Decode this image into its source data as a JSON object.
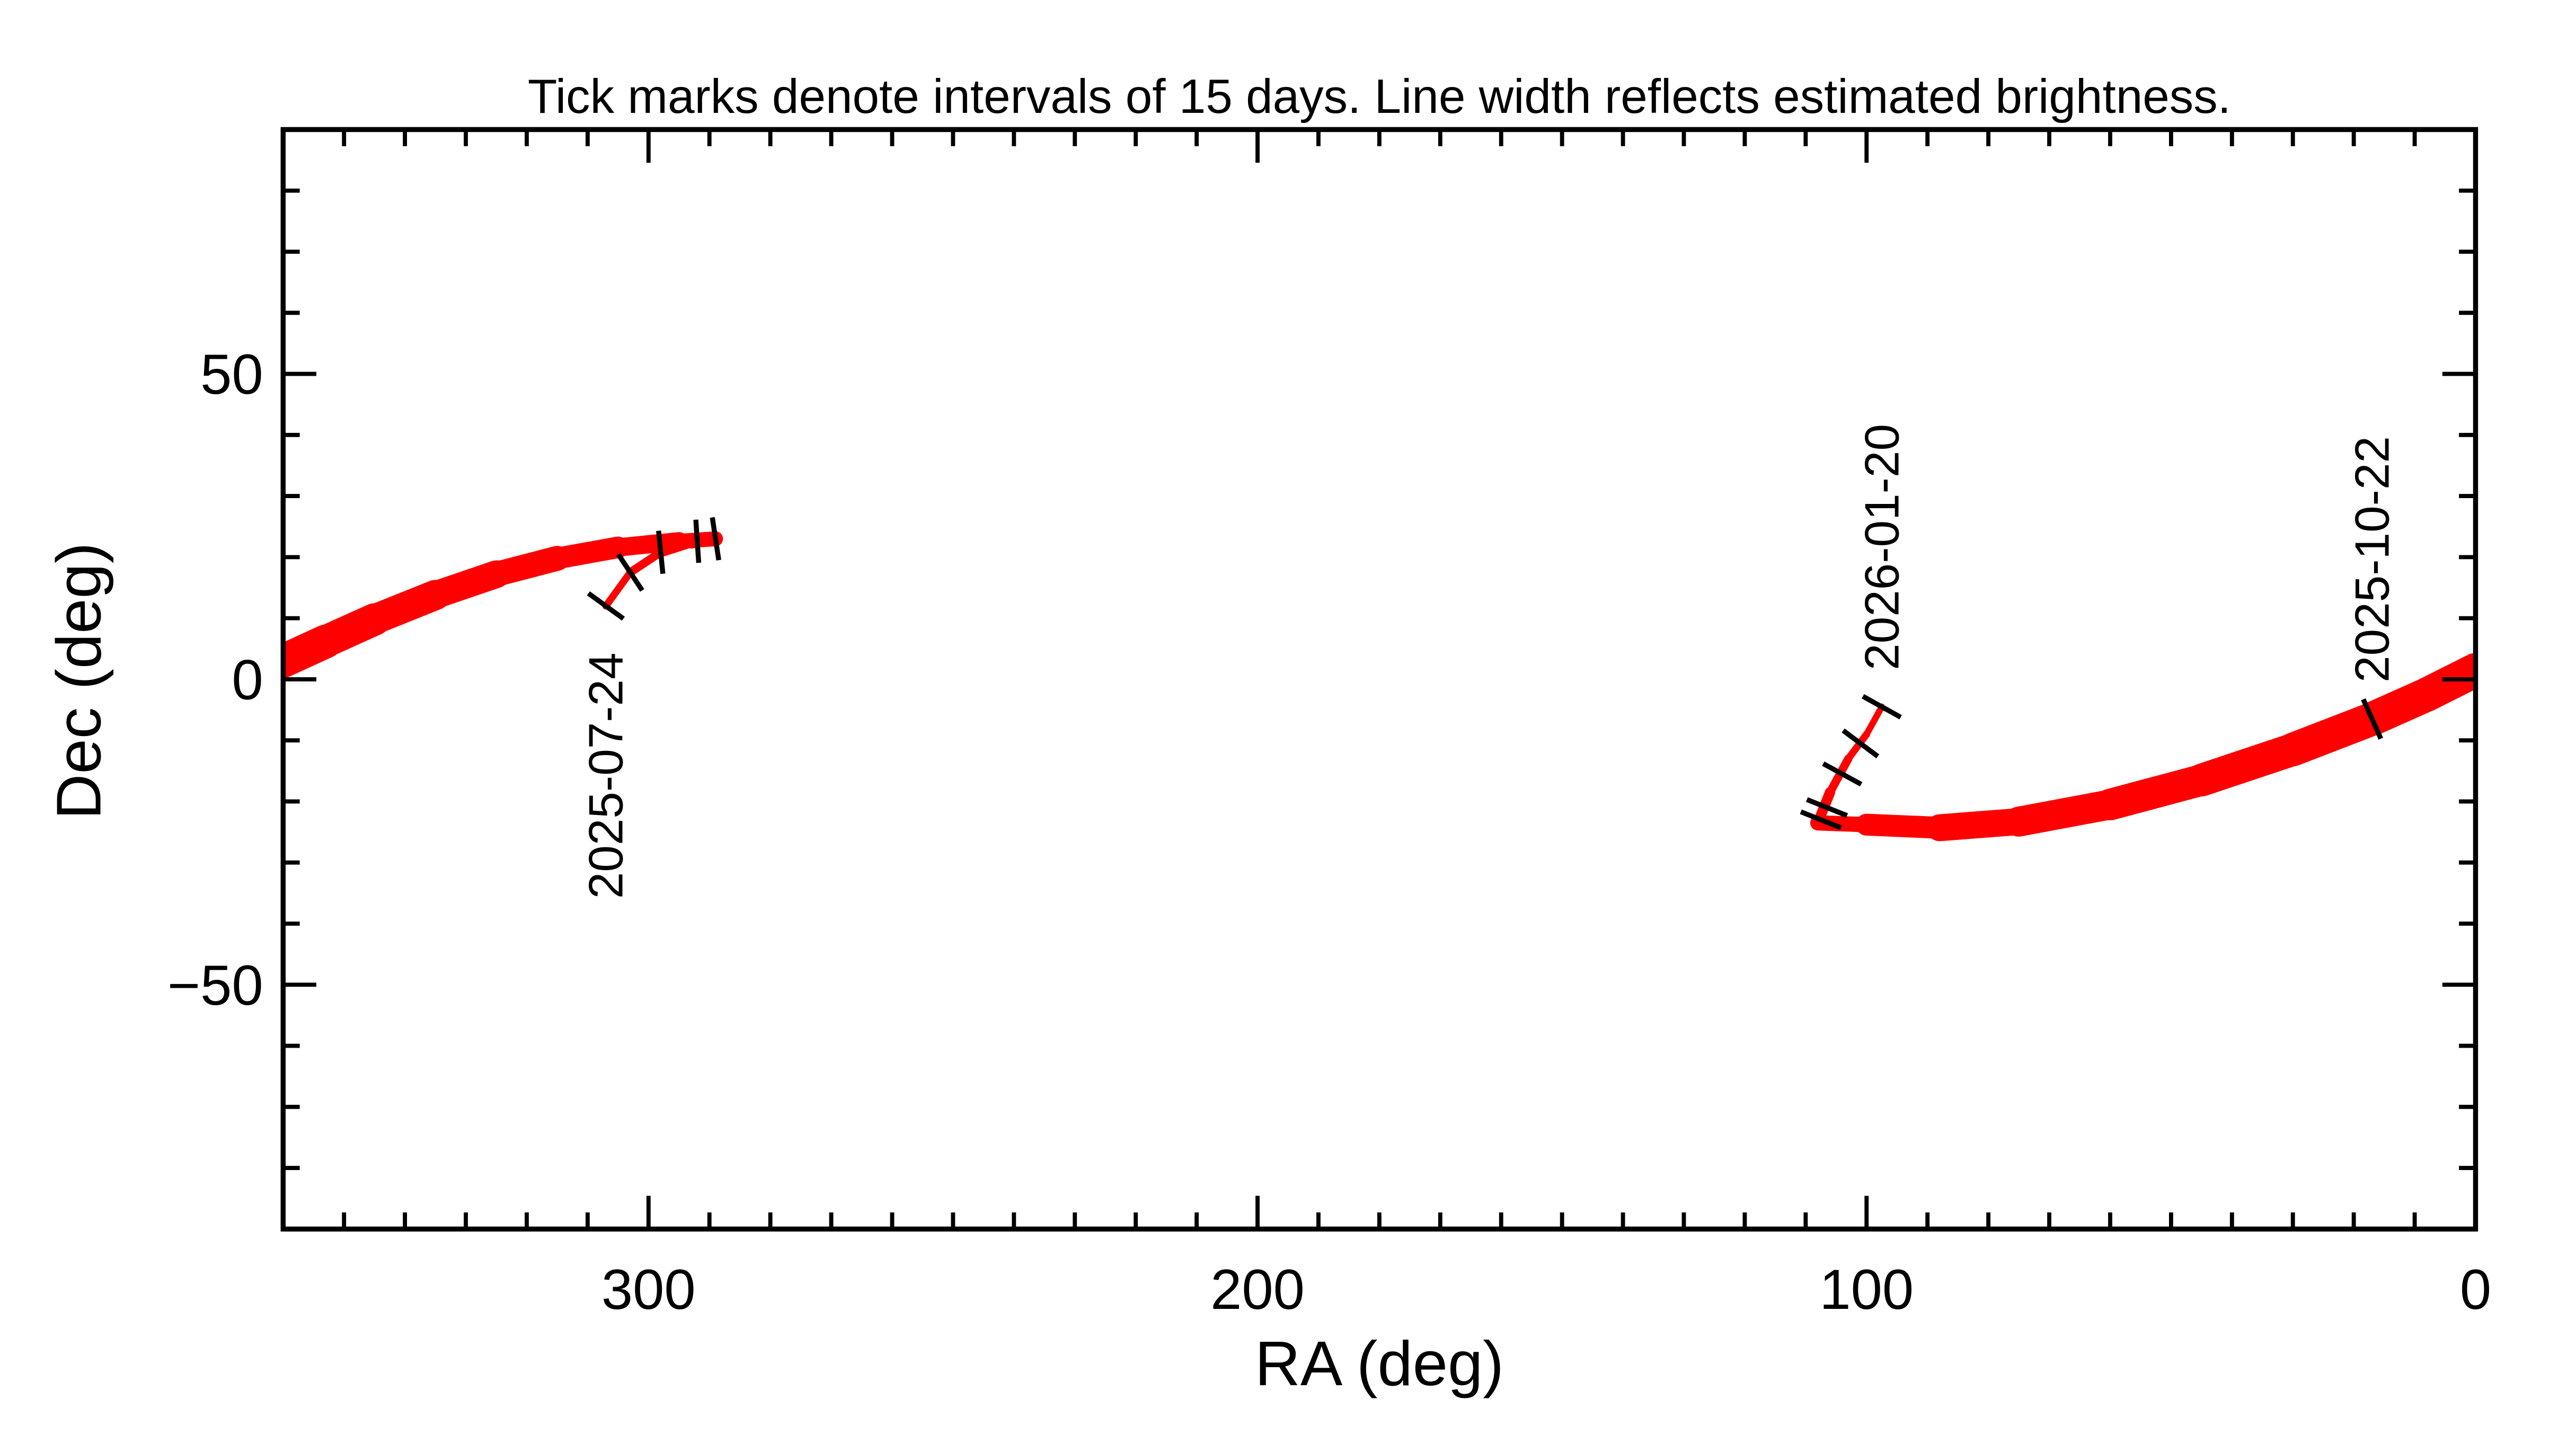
{
  "chart_data": {
    "type": "line",
    "title": "Tick marks denote intervals of 15 days.  Line width reflects estimated brightness.",
    "xlabel": "RA (deg)",
    "ylabel": "Dec (deg)",
    "xlim": [
      360,
      0
    ],
    "ylim": [
      -90,
      90
    ],
    "x_major_ticks": [
      300,
      200,
      100,
      0
    ],
    "x_minor_step": 10,
    "y_major_ticks": [
      50,
      0,
      -50
    ],
    "y_tick_labels": [
      "50",
      "0",
      "−50"
    ],
    "y_minor_step": 10,
    "grid": false,
    "line_color": "#ff0000",
    "tick_color": "#000000",
    "segments": [
      {
        "points": [
          {
            "ra": 307,
            "dec": 12,
            "brightness": 0.05
          },
          {
            "ra": 303,
            "dec": 17.5,
            "brightness": 0.08
          },
          {
            "ra": 298,
            "dec": 20.8,
            "brightness": 0.12
          },
          {
            "ra": 293,
            "dec": 22.4,
            "brightness": 0.18
          },
          {
            "ra": 289,
            "dec": 23,
            "brightness": 0.25
          },
          {
            "ra": 295,
            "dec": 22.6,
            "brightness": 0.35
          },
          {
            "ra": 305,
            "dec": 21.6,
            "brightness": 0.45
          },
          {
            "ra": 315,
            "dec": 19.8,
            "brightness": 0.55
          },
          {
            "ra": 325,
            "dec": 17.2,
            "brightness": 0.65
          },
          {
            "ra": 335,
            "dec": 13.8,
            "brightness": 0.72
          },
          {
            "ra": 345,
            "dec": 9.8,
            "brightness": 0.8
          },
          {
            "ra": 353,
            "dec": 6.2,
            "brightness": 0.85
          },
          {
            "ra": 360,
            "dec": 3,
            "brightness": 0.88
          }
        ]
      },
      {
        "points": [
          {
            "ra": 0,
            "dec": 1.5,
            "brightness": 0.88
          },
          {
            "ra": 8,
            "dec": -2.5,
            "brightness": 0.88
          },
          {
            "ra": 17,
            "dec": -6.5,
            "brightness": 0.87
          },
          {
            "ra": 30,
            "dec": -11.5,
            "brightness": 0.85
          },
          {
            "ra": 45,
            "dec": -16.5,
            "brightness": 0.82
          },
          {
            "ra": 60,
            "dec": -20.5,
            "brightness": 0.78
          },
          {
            "ra": 75,
            "dec": -23.3,
            "brightness": 0.72
          },
          {
            "ra": 88,
            "dec": -24.3,
            "brightness": 0.6
          },
          {
            "ra": 100,
            "dec": -23.8,
            "brightness": 0.42
          },
          {
            "ra": 108,
            "dec": -23.5,
            "brightness": 0.2
          },
          {
            "ra": 106,
            "dec": -18.5,
            "brightness": 0.12
          },
          {
            "ra": 103,
            "dec": -13,
            "brightness": 0.08
          },
          {
            "ra": 100,
            "dec": -9,
            "brightness": 0.05
          },
          {
            "ra": 97.5,
            "dec": -4.5,
            "brightness": 0.04
          }
        ]
      }
    ],
    "date_ticks": [
      {
        "ra": 307,
        "dec": 12
      },
      {
        "ra": 303,
        "dec": 17.5
      },
      {
        "ra": 298,
        "dec": 20.8
      },
      {
        "ra": 292,
        "dec": 22.6
      },
      {
        "ra": 289,
        "dec": 23
      },
      {
        "ra": 17,
        "dec": -6.5
      },
      {
        "ra": 107.5,
        "dec": -23
      },
      {
        "ra": 106.5,
        "dec": -21
      },
      {
        "ra": 104,
        "dec": -15.5
      },
      {
        "ra": 101,
        "dec": -10.5
      },
      {
        "ra": 97.5,
        "dec": -4.5
      }
    ],
    "date_labels": [
      {
        "text": "2025-07-24",
        "ra": 307,
        "dec": 12,
        "position": "below"
      },
      {
        "text": "2026-01-20",
        "ra": 97.5,
        "dec": -4.5,
        "position": "above"
      },
      {
        "text": "2025-10-22",
        "ra": 17,
        "dec": -6.5,
        "position": "above"
      }
    ]
  }
}
